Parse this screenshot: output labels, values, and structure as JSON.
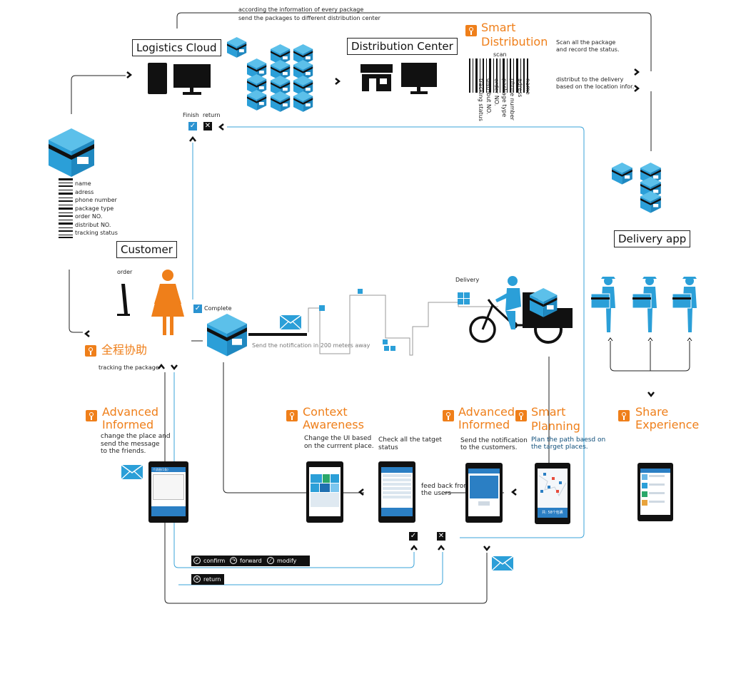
{
  "labels": {
    "top_note_1": "according the information of every package",
    "top_note_2": "send the packages to different distribution center",
    "logistics_cloud": "Logistics Cloud",
    "distribution_center": "Distribution Center",
    "smart_distribution_1": "Smart",
    "smart_distribution_2": "Distribution",
    "scan_note_1": "Scan all the package",
    "scan_note_2": "and record the status.",
    "scan": "scan",
    "distribute_note_1": "distribut to the delivery",
    "distribute_note_2": "based on the location infor.",
    "finish": "Finish",
    "return": "return",
    "customer": "Customer",
    "order": "order",
    "complete": "Complete",
    "notification_200m": "Send the notification in 200 meters away",
    "delivery": "Delivery",
    "delivery_app": "Delivery app",
    "whole_process": "全程协助",
    "tracking_package": "tracking the package",
    "feed_back_1": "feed back from",
    "feed_back_2": "the users"
  },
  "package_fields": [
    "name",
    "adress",
    "phone number",
    "package type",
    "order NO.",
    "distribut NO.",
    "tracking status"
  ],
  "scan_fields": [
    "name",
    "adress",
    "phone number",
    "package type",
    "order NO.",
    "distribut NO.",
    "tracking status"
  ],
  "features": {
    "advanced_informed_left": {
      "title_1": "Advanced",
      "title_2": "Informed",
      "desc_1": "change the place and",
      "desc_2": "send the message",
      "desc_3": "to the friends."
    },
    "context_awareness": {
      "title_1": "Context",
      "title_2": "Awareness",
      "desc_1": "Change  the UI based",
      "desc_2": "on the currrent place."
    },
    "check_targets": {
      "desc_1": "Check all the tatget",
      "desc_2": "status"
    },
    "advanced_informed_right": {
      "title_1": "Advanced",
      "title_2": "Informed",
      "desc_1": "Send the notification",
      "desc_2": "to the customers."
    },
    "smart_planning": {
      "title_1": "Smart",
      "title_2": "Planning",
      "desc_1": "Plan the path baesd on",
      "desc_2": "the target places."
    },
    "share_experience": {
      "title_1": "Share",
      "title_2": "Experience"
    }
  },
  "buttons": {
    "confirm": "confirm",
    "forward": "forward",
    "modify": "modify",
    "return": "return"
  },
  "phone_screens": {
    "left_title": "个消息(1条)",
    "planning_banner": "共: 58个包裹"
  },
  "colors": {
    "accent_orange": "#ef7f1a",
    "package_blue": "#2b9fd8",
    "flow_line_blue": "#3aa3d8",
    "ink": "#111111"
  }
}
